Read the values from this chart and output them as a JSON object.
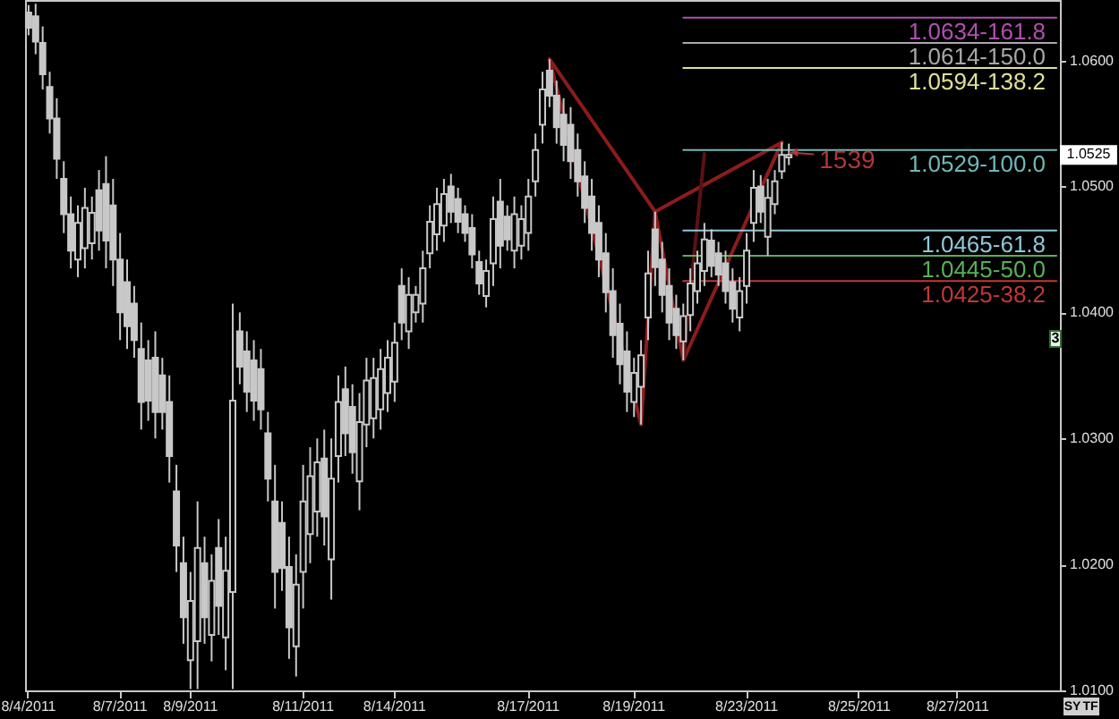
{
  "chart_data": {
    "type": "candlestick",
    "color": "#c8c8c8",
    "categories": [
      "8/4/2011",
      null,
      null,
      null,
      null,
      null,
      null,
      null,
      null,
      null,
      null,
      null,
      null,
      "8/7/2011",
      null,
      null,
      null,
      null,
      null,
      null,
      null,
      null,
      null,
      "8/9/2011",
      null,
      null,
      null,
      null,
      null,
      null,
      null,
      null,
      null,
      null,
      null,
      null,
      null,
      null,
      null,
      "8/11/2011",
      null,
      null,
      null,
      null,
      null,
      null,
      null,
      null,
      null,
      null,
      null,
      null,
      "8/14/2011",
      null,
      null,
      null,
      null,
      null,
      null,
      null,
      null,
      null,
      null,
      null,
      null,
      null,
      null,
      null,
      null,
      null,
      null,
      "8/17/2011",
      null,
      null,
      null,
      null,
      null,
      null,
      null,
      null,
      null,
      null,
      null,
      null,
      null,
      null,
      "8/19/2011",
      null,
      null,
      null,
      null,
      null,
      null,
      null,
      null,
      null,
      null,
      null,
      null,
      null,
      null,
      null,
      "8/23/2011",
      null,
      null,
      null,
      null,
      null,
      null,
      null,
      null,
      null,
      null,
      null,
      null,
      null,
      null,
      null,
      "8/25/2011",
      null,
      null,
      null,
      null,
      null,
      null,
      null,
      null,
      null,
      null,
      null,
      null,
      null,
      "8/27/2011",
      null,
      null,
      null,
      null,
      null,
      null,
      null,
      null,
      null,
      null,
      null,
      null,
      null,
      null
    ],
    "ohlc": [
      [
        1.0638,
        1.0644,
        1.062,
        1.0626
      ],
      [
        1.0635,
        1.0645,
        1.0605,
        1.0615
      ],
      [
        1.0614,
        1.0627,
        1.0577,
        1.0589
      ],
      [
        1.0579,
        1.0591,
        1.0542,
        1.0554
      ],
      [
        1.0554,
        1.057,
        1.0506,
        1.0522
      ],
      [
        1.0506,
        1.052,
        1.0463,
        1.0478
      ],
      [
        1.0478,
        1.0492,
        1.0435,
        1.0449
      ],
      [
        1.0442,
        1.0485,
        1.0428,
        1.0471
      ],
      [
        1.0451,
        1.0499,
        1.0435,
        1.0483
      ],
      [
        1.0455,
        1.0492,
        1.0442,
        1.0479
      ],
      [
        1.0497,
        1.0513,
        1.0449,
        1.0465
      ],
      [
        1.0502,
        1.0524,
        1.0435,
        1.0457
      ],
      [
        1.0485,
        1.0506,
        1.0421,
        1.0442
      ],
      [
        1.0442,
        1.0463,
        1.0378,
        1.04
      ],
      [
        1.0424,
        1.0442,
        1.0371,
        1.0389
      ],
      [
        1.0407,
        1.0421,
        1.0364,
        1.0378
      ],
      [
        1.0371,
        1.0392,
        1.0307,
        1.0329
      ],
      [
        1.0362,
        1.0378,
        1.0314,
        1.033
      ],
      [
        1.0364,
        1.0385,
        1.03,
        1.0321
      ],
      [
        1.035,
        1.0364,
        1.0307,
        1.0321
      ],
      [
        1.0329,
        1.035,
        1.0265,
        1.0286
      ],
      [
        1.0258,
        1.0279,
        1.0194,
        1.0215
      ],
      [
        1.0201,
        1.0222,
        1.0137,
        1.0158
      ],
      [
        1.0124,
        1.0194,
        1.0101,
        1.0171
      ],
      [
        1.0139,
        1.025,
        1.0101,
        1.0213
      ],
      [
        1.0201,
        1.0222,
        1.0137,
        1.0158
      ],
      [
        1.0144,
        1.0208,
        1.0123,
        1.0187
      ],
      [
        1.0213,
        1.0236,
        1.0144,
        1.0167
      ],
      [
        1.0142,
        1.0222,
        1.0116,
        1.0195
      ],
      [
        1.0178,
        1.0407,
        1.0101,
        1.033
      ],
      [
        1.0385,
        1.04,
        1.0343,
        1.0357
      ],
      [
        1.0369,
        1.0385,
        1.0321,
        1.0337
      ],
      [
        1.0362,
        1.0378,
        1.0314,
        1.033
      ],
      [
        1.0355,
        1.0371,
        1.0307,
        1.0323
      ],
      [
        1.0304,
        1.0321,
        1.025,
        1.0268
      ],
      [
        1.025,
        1.0279,
        1.0165,
        1.0194
      ],
      [
        1.0233,
        1.025,
        1.0179,
        1.0197
      ],
      [
        1.0198,
        1.0222,
        1.0125,
        1.015
      ],
      [
        1.0135,
        1.0208,
        1.0111,
        1.0184
      ],
      [
        1.0194,
        1.0279,
        1.0165,
        1.025
      ],
      [
        1.0224,
        1.0293,
        1.0201,
        1.027
      ],
      [
        1.0242,
        1.03,
        1.0222,
        1.0281
      ],
      [
        1.0284,
        1.0307,
        1.0215,
        1.0238
      ],
      [
        1.0204,
        1.03,
        1.0172,
        1.0268
      ],
      [
        1.0286,
        1.035,
        1.0265,
        1.0329
      ],
      [
        1.0339,
        1.0357,
        1.0286,
        1.0304
      ],
      [
        1.0325,
        1.0343,
        1.0272,
        1.0289
      ],
      [
        1.0266,
        1.0336,
        1.0243,
        1.0313
      ],
      [
        1.0311,
        1.0364,
        1.0293,
        1.0346
      ],
      [
        1.0316,
        1.0364,
        1.03,
        1.0348
      ],
      [
        1.0323,
        1.0371,
        1.0307,
        1.0355
      ],
      [
        1.0336,
        1.0378,
        1.0321,
        1.0364
      ],
      [
        1.0345,
        1.0392,
        1.0329,
        1.0376
      ],
      [
        1.0421,
        1.0435,
        1.0378,
        1.0392
      ],
      [
        1.0385,
        1.0428,
        1.0371,
        1.0414
      ],
      [
        1.04,
        1.0421,
        1.0392,
        1.0414
      ],
      [
        1.0407,
        1.0449,
        1.0392,
        1.0435
      ],
      [
        1.0447,
        1.0485,
        1.0435,
        1.0472
      ],
      [
        1.0462,
        1.0499,
        1.0449,
        1.0486
      ],
      [
        1.0469,
        1.0506,
        1.0456,
        1.0494
      ],
      [
        1.05,
        1.051,
        1.0471,
        1.048
      ],
      [
        1.049,
        1.0499,
        1.0463,
        1.0472
      ],
      [
        1.0478,
        1.0485,
        1.0456,
        1.0463
      ],
      [
        1.0467,
        1.0478,
        1.0435,
        1.0446
      ],
      [
        1.044,
        1.0449,
        1.0414,
        1.0423
      ],
      [
        1.0413,
        1.0442,
        1.0404,
        1.0433
      ],
      [
        1.0439,
        1.0492,
        1.0421,
        1.0474
      ],
      [
        1.0488,
        1.0506,
        1.0435,
        1.0453
      ],
      [
        1.0476,
        1.0485,
        1.0449,
        1.0458
      ],
      [
        1.0449,
        1.0492,
        1.0435,
        1.0478
      ],
      [
        1.0453,
        1.0485,
        1.0442,
        1.0474
      ],
      [
        1.0463,
        1.0506,
        1.0449,
        1.0492
      ],
      [
        1.0504,
        1.0542,
        1.0492,
        1.0529
      ],
      [
        1.0549,
        1.0591,
        1.0534,
        1.0577
      ],
      [
        1.0592,
        1.0601,
        1.0563,
        1.0572
      ],
      [
        1.0572,
        1.0584,
        1.0534,
        1.0547
      ],
      [
        1.0557,
        1.057,
        1.052,
        1.0533
      ],
      [
        1.0549,
        1.0563,
        1.0506,
        1.052
      ],
      [
        1.0529,
        1.0542,
        1.0492,
        1.0504
      ],
      [
        1.0508,
        1.052,
        1.0471,
        1.0483
      ],
      [
        1.0492,
        1.0506,
        1.0449,
        1.0463
      ],
      [
        1.0471,
        1.0485,
        1.0428,
        1.0442
      ],
      [
        1.0447,
        1.0463,
        1.04,
        1.0416
      ],
      [
        1.0417,
        1.0435,
        1.0364,
        1.0382
      ],
      [
        1.0391,
        1.0407,
        1.0343,
        1.0359
      ],
      [
        1.0369,
        1.0385,
        1.0321,
        1.0337
      ],
      [
        1.0329,
        1.0364,
        1.0317,
        1.0352
      ],
      [
        1.0341,
        1.0378,
        1.0311,
        1.0366
      ],
      [
        1.0396,
        1.0449,
        1.0378,
        1.0431
      ],
      [
        1.0466,
        1.048,
        1.0421,
        1.0436
      ],
      [
        1.0442,
        1.0456,
        1.04,
        1.0414
      ],
      [
        1.0421,
        1.0435,
        1.0378,
        1.0392
      ],
      [
        1.0403,
        1.0414,
        1.0371,
        1.0382
      ],
      [
        1.0377,
        1.0407,
        1.0362,
        1.0397
      ],
      [
        1.0398,
        1.0435,
        1.0385,
        1.0423
      ],
      [
        1.0417,
        1.0449,
        1.0407,
        1.0439
      ],
      [
        1.0433,
        1.0471,
        1.0421,
        1.0458
      ],
      [
        1.0457,
        1.0466,
        1.0428,
        1.0437
      ],
      [
        1.0447,
        1.0456,
        1.0421,
        1.043
      ],
      [
        1.0439,
        1.0449,
        1.0407,
        1.0417
      ],
      [
        1.0424,
        1.0435,
        1.0392,
        1.0403
      ],
      [
        1.0396,
        1.0428,
        1.0385,
        1.0417
      ],
      [
        1.0421,
        1.0463,
        1.0407,
        1.0449
      ],
      [
        1.0471,
        1.0513,
        1.0456,
        1.0499
      ],
      [
        1.05,
        1.0509,
        1.0471,
        1.048
      ],
      [
        1.046,
        1.0506,
        1.0445,
        1.0491
      ],
      [
        1.0486,
        1.0513,
        1.0478,
        1.0504
      ],
      [
        1.0512,
        1.0535,
        1.0506,
        1.0525
      ],
      [
        1.0523,
        1.0534,
        1.0517,
        1.0525
      ],
      null,
      null,
      null,
      null,
      null,
      null,
      null,
      null,
      null,
      null,
      null,
      null,
      null,
      null,
      null,
      null,
      null,
      null,
      null,
      null,
      null,
      null,
      null,
      null,
      null,
      null,
      null,
      null,
      null,
      null,
      null,
      null,
      null,
      null,
      null,
      null,
      null,
      null
    ],
    "series": [
      {
        "type": "line",
        "color": "#8c1c1c",
        "values": [
          null,
          null,
          null,
          null,
          null,
          null,
          null,
          null,
          null,
          null,
          null,
          null,
          null,
          null,
          null,
          null,
          null,
          null,
          null,
          null,
          null,
          null,
          null,
          null,
          null,
          null,
          null,
          null,
          null,
          null,
          null,
          null,
          null,
          null,
          null,
          null,
          null,
          null,
          null,
          null,
          null,
          null,
          null,
          null,
          null,
          null,
          null,
          null,
          null,
          null,
          null,
          null,
          null,
          null,
          null,
          null,
          null,
          null,
          null,
          null,
          null,
          null,
          null,
          null,
          null,
          null,
          null,
          null,
          null,
          null,
          null,
          null,
          null,
          null,
          1.0601,
          null,
          null,
          null,
          null,
          null,
          null,
          null,
          null,
          null,
          null,
          null,
          null,
          1.0311,
          null,
          1.048,
          null,
          null,
          null,
          1.0362,
          null,
          null,
          null,
          null,
          null,
          null,
          null,
          null,
          null,
          null,
          null,
          null,
          null,
          1.0535,
          null,
          null,
          null,
          null,
          null,
          null,
          null,
          null,
          null,
          null,
          null,
          null,
          null,
          null,
          null,
          null,
          null,
          null,
          null,
          null,
          null,
          null,
          null,
          null,
          null,
          null,
          null,
          null,
          null,
          null,
          null,
          null,
          null,
          null,
          null,
          null,
          null,
          null,
          null
        ]
      },
      {
        "type": "line",
        "color": "#8c1c1c",
        "values": [
          null,
          null,
          null,
          null,
          null,
          null,
          null,
          null,
          null,
          null,
          null,
          null,
          null,
          null,
          null,
          null,
          null,
          null,
          null,
          null,
          null,
          null,
          null,
          null,
          null,
          null,
          null,
          null,
          null,
          null,
          null,
          null,
          null,
          null,
          null,
          null,
          null,
          null,
          null,
          null,
          null,
          null,
          null,
          null,
          null,
          null,
          null,
          null,
          null,
          null,
          null,
          null,
          null,
          null,
          null,
          null,
          null,
          null,
          null,
          null,
          null,
          null,
          null,
          null,
          null,
          null,
          null,
          null,
          null,
          null,
          null,
          null,
          null,
          null,
          1.0601,
          null,
          null,
          null,
          null,
          null,
          null,
          null,
          null,
          null,
          null,
          null,
          null,
          null,
          null,
          1.048,
          null,
          null,
          null,
          null,
          null,
          null,
          null,
          null,
          null,
          null,
          null,
          null,
          null,
          null,
          null,
          null,
          null,
          1.0535,
          null,
          null,
          null,
          null,
          null,
          null,
          null,
          null,
          null,
          null,
          null,
          null,
          null,
          null,
          null,
          null,
          null,
          null,
          null,
          null,
          null,
          null,
          null,
          null,
          null,
          null,
          null,
          null,
          null,
          null,
          null,
          null,
          null,
          null,
          null,
          null,
          null,
          null,
          null
        ]
      },
      {
        "type": "line",
        "color": "#5a1212",
        "values": [
          null,
          null,
          null,
          null,
          null,
          null,
          null,
          null,
          null,
          null,
          null,
          null,
          null,
          null,
          null,
          null,
          null,
          null,
          null,
          null,
          null,
          null,
          null,
          null,
          null,
          null,
          null,
          null,
          null,
          null,
          null,
          null,
          null,
          null,
          null,
          null,
          null,
          null,
          null,
          null,
          null,
          null,
          null,
          null,
          null,
          null,
          null,
          null,
          null,
          null,
          null,
          null,
          null,
          null,
          null,
          null,
          null,
          null,
          null,
          null,
          null,
          null,
          null,
          null,
          null,
          null,
          null,
          null,
          null,
          null,
          null,
          null,
          null,
          null,
          null,
          null,
          null,
          null,
          null,
          null,
          null,
          null,
          null,
          null,
          null,
          null,
          null,
          null,
          null,
          null,
          null,
          null,
          null,
          1.0362,
          null,
          null,
          1.0526,
          null,
          null,
          null,
          null,
          null,
          null,
          null,
          null,
          null,
          null,
          null,
          null,
          null,
          null,
          null,
          null,
          null,
          null,
          null,
          null,
          null,
          null,
          null,
          null,
          null,
          null,
          null,
          null,
          null,
          null,
          null,
          null,
          null,
          null,
          null,
          null,
          null,
          null,
          null,
          null,
          null,
          null,
          null,
          null,
          null,
          null,
          null,
          null,
          null,
          null
        ]
      },
      {
        "type": "line",
        "name": "1.0634-161.8",
        "color": "#b050b0",
        "values": [
          null,
          null,
          null,
          null,
          null,
          null,
          null,
          null,
          null,
          null,
          null,
          null,
          null,
          null,
          null,
          null,
          null,
          null,
          null,
          null,
          null,
          null,
          null,
          null,
          null,
          null,
          null,
          null,
          null,
          null,
          null,
          null,
          null,
          null,
          null,
          null,
          null,
          null,
          null,
          null,
          null,
          null,
          null,
          null,
          null,
          null,
          null,
          null,
          null,
          null,
          null,
          null,
          null,
          null,
          null,
          null,
          null,
          null,
          null,
          null,
          null,
          null,
          null,
          null,
          null,
          null,
          null,
          null,
          null,
          null,
          null,
          null,
          null,
          null,
          null,
          null,
          null,
          null,
          null,
          null,
          null,
          null,
          null,
          null,
          null,
          null,
          null,
          null,
          null,
          null,
          null,
          null,
          null,
          1.0634,
          1.0634,
          1.0634,
          1.0634,
          1.0634,
          1.0634,
          1.0634,
          1.0634,
          1.0634,
          1.0634,
          1.0634,
          1.0634,
          1.0634,
          1.0634,
          1.0634,
          1.0634,
          1.0634,
          1.0634,
          1.0634,
          1.0634,
          1.0634,
          1.0634,
          1.0634,
          1.0634,
          1.0634,
          1.0634,
          1.0634,
          1.0634,
          1.0634,
          1.0634,
          1.0634,
          1.0634,
          1.0634,
          1.0634,
          1.0634,
          1.0634,
          1.0634,
          1.0634,
          1.0634,
          1.0634,
          1.0634,
          1.0634,
          1.0634,
          1.0634,
          1.0634,
          1.0634,
          1.0634,
          1.0634,
          1.0634,
          1.0634,
          1.0634,
          1.0634,
          1.0634,
          1.0634
        ]
      },
      {
        "type": "line",
        "name": "1.0614-150.0",
        "color": "#a8a8a8",
        "values": [
          null,
          null,
          null,
          null,
          null,
          null,
          null,
          null,
          null,
          null,
          null,
          null,
          null,
          null,
          null,
          null,
          null,
          null,
          null,
          null,
          null,
          null,
          null,
          null,
          null,
          null,
          null,
          null,
          null,
          null,
          null,
          null,
          null,
          null,
          null,
          null,
          null,
          null,
          null,
          null,
          null,
          null,
          null,
          null,
          null,
          null,
          null,
          null,
          null,
          null,
          null,
          null,
          null,
          null,
          null,
          null,
          null,
          null,
          null,
          null,
          null,
          null,
          null,
          null,
          null,
          null,
          null,
          null,
          null,
          null,
          null,
          null,
          null,
          null,
          null,
          null,
          null,
          null,
          null,
          null,
          null,
          null,
          null,
          null,
          null,
          null,
          null,
          null,
          null,
          null,
          null,
          null,
          null,
          1.0614,
          1.0614,
          1.0614,
          1.0614,
          1.0614,
          1.0614,
          1.0614,
          1.0614,
          1.0614,
          1.0614,
          1.0614,
          1.0614,
          1.0614,
          1.0614,
          1.0614,
          1.0614,
          1.0614,
          1.0614,
          1.0614,
          1.0614,
          1.0614,
          1.0614,
          1.0614,
          1.0614,
          1.0614,
          1.0614,
          1.0614,
          1.0614,
          1.0614,
          1.0614,
          1.0614,
          1.0614,
          1.0614,
          1.0614,
          1.0614,
          1.0614,
          1.0614,
          1.0614,
          1.0614,
          1.0614,
          1.0614,
          1.0614,
          1.0614,
          1.0614,
          1.0614,
          1.0614,
          1.0614,
          1.0614,
          1.0614,
          1.0614,
          1.0614,
          1.0614,
          1.0614,
          1.0614
        ]
      },
      {
        "type": "line",
        "name": "1.0594-138.2",
        "color": "#e0e098",
        "values": [
          null,
          null,
          null,
          null,
          null,
          null,
          null,
          null,
          null,
          null,
          null,
          null,
          null,
          null,
          null,
          null,
          null,
          null,
          null,
          null,
          null,
          null,
          null,
          null,
          null,
          null,
          null,
          null,
          null,
          null,
          null,
          null,
          null,
          null,
          null,
          null,
          null,
          null,
          null,
          null,
          null,
          null,
          null,
          null,
          null,
          null,
          null,
          null,
          null,
          null,
          null,
          null,
          null,
          null,
          null,
          null,
          null,
          null,
          null,
          null,
          null,
          null,
          null,
          null,
          null,
          null,
          null,
          null,
          null,
          null,
          null,
          null,
          null,
          null,
          null,
          null,
          null,
          null,
          null,
          null,
          null,
          null,
          null,
          null,
          null,
          null,
          null,
          null,
          null,
          null,
          null,
          null,
          null,
          1.0594,
          1.0594,
          1.0594,
          1.0594,
          1.0594,
          1.0594,
          1.0594,
          1.0594,
          1.0594,
          1.0594,
          1.0594,
          1.0594,
          1.0594,
          1.0594,
          1.0594,
          1.0594,
          1.0594,
          1.0594,
          1.0594,
          1.0594,
          1.0594,
          1.0594,
          1.0594,
          1.0594,
          1.0594,
          1.0594,
          1.0594,
          1.0594,
          1.0594,
          1.0594,
          1.0594,
          1.0594,
          1.0594,
          1.0594,
          1.0594,
          1.0594,
          1.0594,
          1.0594,
          1.0594,
          1.0594,
          1.0594,
          1.0594,
          1.0594,
          1.0594,
          1.0594,
          1.0594,
          1.0594,
          1.0594,
          1.0594,
          1.0594,
          1.0594,
          1.0594,
          1.0594,
          1.0594
        ]
      },
      {
        "type": "line",
        "name": "1.0529-100.0",
        "color": "#70b8b8",
        "values": [
          null,
          null,
          null,
          null,
          null,
          null,
          null,
          null,
          null,
          null,
          null,
          null,
          null,
          null,
          null,
          null,
          null,
          null,
          null,
          null,
          null,
          null,
          null,
          null,
          null,
          null,
          null,
          null,
          null,
          null,
          null,
          null,
          null,
          null,
          null,
          null,
          null,
          null,
          null,
          null,
          null,
          null,
          null,
          null,
          null,
          null,
          null,
          null,
          null,
          null,
          null,
          null,
          null,
          null,
          null,
          null,
          null,
          null,
          null,
          null,
          null,
          null,
          null,
          null,
          null,
          null,
          null,
          null,
          null,
          null,
          null,
          null,
          null,
          null,
          null,
          null,
          null,
          null,
          null,
          null,
          null,
          null,
          null,
          null,
          null,
          null,
          null,
          null,
          null,
          null,
          null,
          null,
          null,
          1.0529,
          1.0529,
          1.0529,
          1.0529,
          1.0529,
          1.0529,
          1.0529,
          1.0529,
          1.0529,
          1.0529,
          1.0529,
          1.0529,
          1.0529,
          1.0529,
          1.0529,
          1.0529,
          1.0529,
          1.0529,
          1.0529,
          1.0529,
          1.0529,
          1.0529,
          1.0529,
          1.0529,
          1.0529,
          1.0529,
          1.0529,
          1.0529,
          1.0529,
          1.0529,
          1.0529,
          1.0529,
          1.0529,
          1.0529,
          1.0529,
          1.0529,
          1.0529,
          1.0529,
          1.0529,
          1.0529,
          1.0529,
          1.0529,
          1.0529,
          1.0529,
          1.0529,
          1.0529,
          1.0529,
          1.0529,
          1.0529,
          1.0529,
          1.0529,
          1.0529,
          1.0529,
          1.0529
        ]
      },
      {
        "type": "line",
        "name": "1.0465-61.8",
        "color": "#90c8d8",
        "values": [
          null,
          null,
          null,
          null,
          null,
          null,
          null,
          null,
          null,
          null,
          null,
          null,
          null,
          null,
          null,
          null,
          null,
          null,
          null,
          null,
          null,
          null,
          null,
          null,
          null,
          null,
          null,
          null,
          null,
          null,
          null,
          null,
          null,
          null,
          null,
          null,
          null,
          null,
          null,
          null,
          null,
          null,
          null,
          null,
          null,
          null,
          null,
          null,
          null,
          null,
          null,
          null,
          null,
          null,
          null,
          null,
          null,
          null,
          null,
          null,
          null,
          null,
          null,
          null,
          null,
          null,
          null,
          null,
          null,
          null,
          null,
          null,
          null,
          null,
          null,
          null,
          null,
          null,
          null,
          null,
          null,
          null,
          null,
          null,
          null,
          null,
          null,
          null,
          null,
          null,
          null,
          null,
          null,
          1.0465,
          1.0465,
          1.0465,
          1.0465,
          1.0465,
          1.0465,
          1.0465,
          1.0465,
          1.0465,
          1.0465,
          1.0465,
          1.0465,
          1.0465,
          1.0465,
          1.0465,
          1.0465,
          1.0465,
          1.0465,
          1.0465,
          1.0465,
          1.0465,
          1.0465,
          1.0465,
          1.0465,
          1.0465,
          1.0465,
          1.0465,
          1.0465,
          1.0465,
          1.0465,
          1.0465,
          1.0465,
          1.0465,
          1.0465,
          1.0465,
          1.0465,
          1.0465,
          1.0465,
          1.0465,
          1.0465,
          1.0465,
          1.0465,
          1.0465,
          1.0465,
          1.0465,
          1.0465,
          1.0465,
          1.0465,
          1.0465,
          1.0465,
          1.0465,
          1.0465,
          1.0465,
          1.0465
        ]
      },
      {
        "type": "line",
        "name": "1.0445-50.0",
        "color": "#58b058",
        "values": [
          null,
          null,
          null,
          null,
          null,
          null,
          null,
          null,
          null,
          null,
          null,
          null,
          null,
          null,
          null,
          null,
          null,
          null,
          null,
          null,
          null,
          null,
          null,
          null,
          null,
          null,
          null,
          null,
          null,
          null,
          null,
          null,
          null,
          null,
          null,
          null,
          null,
          null,
          null,
          null,
          null,
          null,
          null,
          null,
          null,
          null,
          null,
          null,
          null,
          null,
          null,
          null,
          null,
          null,
          null,
          null,
          null,
          null,
          null,
          null,
          null,
          null,
          null,
          null,
          null,
          null,
          null,
          null,
          null,
          null,
          null,
          null,
          null,
          null,
          null,
          null,
          null,
          null,
          null,
          null,
          null,
          null,
          null,
          null,
          null,
          null,
          null,
          null,
          null,
          null,
          null,
          null,
          null,
          1.0445,
          1.0445,
          1.0445,
          1.0445,
          1.0445,
          1.0445,
          1.0445,
          1.0445,
          1.0445,
          1.0445,
          1.0445,
          1.0445,
          1.0445,
          1.0445,
          1.0445,
          1.0445,
          1.0445,
          1.0445,
          1.0445,
          1.0445,
          1.0445,
          1.0445,
          1.0445,
          1.0445,
          1.0445,
          1.0445,
          1.0445,
          1.0445,
          1.0445,
          1.0445,
          1.0445,
          1.0445,
          1.0445,
          1.0445,
          1.0445,
          1.0445,
          1.0445,
          1.0445,
          1.0445,
          1.0445,
          1.0445,
          1.0445,
          1.0445,
          1.0445,
          1.0445,
          1.0445,
          1.0445,
          1.0445,
          1.0445,
          1.0445,
          1.0445,
          1.0445,
          1.0445,
          1.0445
        ]
      },
      {
        "type": "line",
        "name": "1.0425-38.2",
        "color": "#c03838",
        "values": [
          null,
          null,
          null,
          null,
          null,
          null,
          null,
          null,
          null,
          null,
          null,
          null,
          null,
          null,
          null,
          null,
          null,
          null,
          null,
          null,
          null,
          null,
          null,
          null,
          null,
          null,
          null,
          null,
          null,
          null,
          null,
          null,
          null,
          null,
          null,
          null,
          null,
          null,
          null,
          null,
          null,
          null,
          null,
          null,
          null,
          null,
          null,
          null,
          null,
          null,
          null,
          null,
          null,
          null,
          null,
          null,
          null,
          null,
          null,
          null,
          null,
          null,
          null,
          null,
          null,
          null,
          null,
          null,
          null,
          null,
          null,
          null,
          null,
          null,
          null,
          null,
          null,
          null,
          null,
          null,
          null,
          null,
          null,
          null,
          null,
          null,
          null,
          null,
          null,
          null,
          null,
          null,
          null,
          1.0425,
          1.0425,
          1.0425,
          1.0425,
          1.0425,
          1.0425,
          1.0425,
          1.0425,
          1.0425,
          1.0425,
          1.0425,
          1.0425,
          1.0425,
          1.0425,
          1.0425,
          1.0425,
          1.0425,
          1.0425,
          1.0425,
          1.0425,
          1.0425,
          1.0425,
          1.0425,
          1.0425,
          1.0425,
          1.0425,
          1.0425,
          1.0425,
          1.0425,
          1.0425,
          1.0425,
          1.0425,
          1.0425,
          1.0425,
          1.0425,
          1.0425,
          1.0425,
          1.0425,
          1.0425,
          1.0425,
          1.0425,
          1.0425,
          1.0425,
          1.0425,
          1.0425,
          1.0425,
          1.0425,
          1.0425,
          1.0425,
          1.0425,
          1.0425,
          1.0425,
          1.0425,
          1.0425
        ]
      }
    ],
    "ylim": [
      1.01,
      1.0648
    ],
    "yticks": [
      {
        "value": 1.01,
        "label": "1.0100"
      },
      {
        "value": 1.02,
        "label": "1.0200"
      },
      {
        "value": 1.03,
        "label": "1.0300"
      },
      {
        "value": 1.04,
        "label": "1.0400"
      },
      {
        "value": 1.05,
        "label": "1.0500"
      },
      {
        "value": 1.06,
        "label": "1.0600"
      }
    ],
    "annotations": [
      {
        "text": "1539",
        "y": 1.0527
      },
      {
        "text": "1.0525",
        "y": 1.0525
      },
      "3",
      "SY",
      "TF"
    ]
  }
}
